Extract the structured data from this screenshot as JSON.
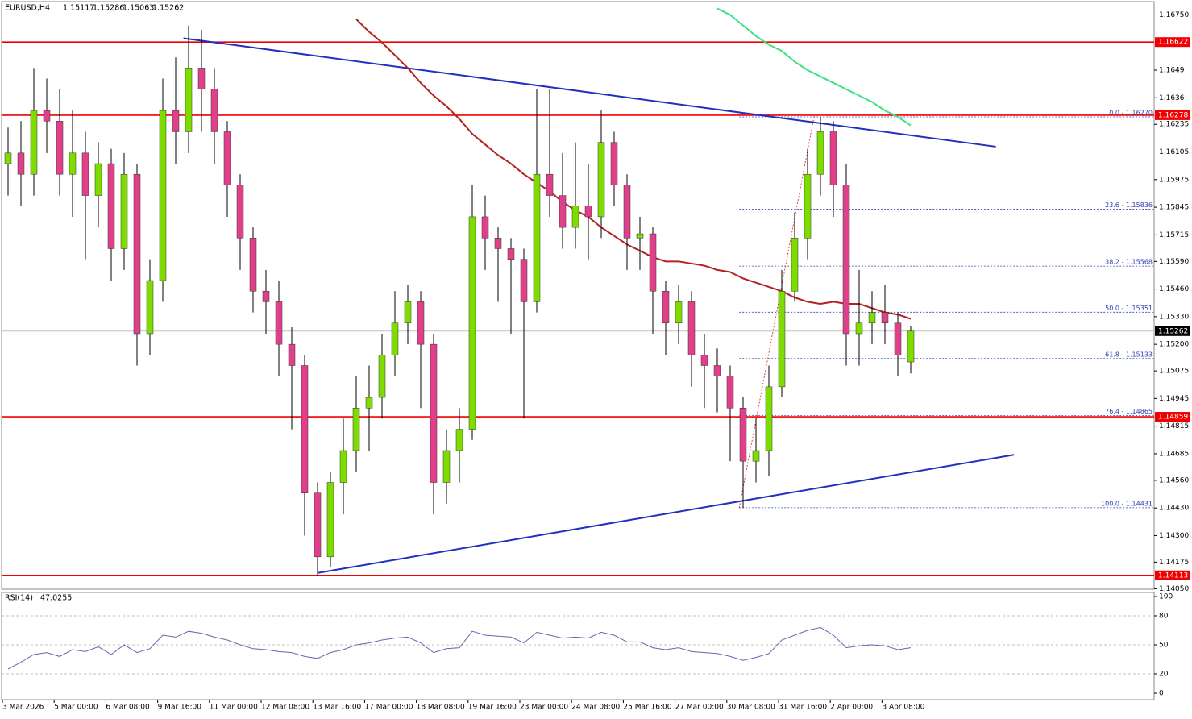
{
  "chart_data": {
    "type": "candlestick",
    "title": "EURUSD,H4",
    "bull_color": "#7fdc00",
    "bear_color": "#e0408a",
    "open": [
      1.1605,
      1.161,
      1.16,
      1.163,
      1.1625,
      1.16,
      1.161,
      1.159,
      1.1605,
      1.1565,
      1.16,
      1.1525,
      1.155,
      1.163,
      1.162,
      1.165,
      1.164,
      1.162,
      1.1595,
      1.157,
      1.1545,
      1.154,
      1.152,
      1.151,
      1.145,
      1.142,
      1.1455,
      1.147,
      1.149,
      1.1495,
      1.1515,
      1.153,
      1.154,
      1.152,
      1.1455,
      1.147,
      1.148,
      1.158,
      1.157,
      1.1565,
      1.156,
      1.154,
      1.16,
      1.159,
      1.1575,
      1.1585,
      1.158,
      1.1615,
      1.1595,
      1.157,
      1.1572,
      1.1545,
      1.153,
      1.154,
      1.1515,
      1.151,
      1.1505,
      1.149,
      1.1465,
      1.147,
      1.15,
      1.1545,
      1.157,
      1.16,
      1.162,
      1.1595,
      1.1525,
      1.153,
      1.1535,
      1.153,
      1.15117
    ],
    "high": [
      1.1622,
      1.1625,
      1.165,
      1.1645,
      1.164,
      1.163,
      1.162,
      1.1615,
      1.1612,
      1.161,
      1.1605,
      1.156,
      1.1645,
      1.1655,
      1.167,
      1.1668,
      1.165,
      1.1625,
      1.16,
      1.1575,
      1.1555,
      1.155,
      1.1528,
      1.1515,
      1.1455,
      1.146,
      1.1485,
      1.1505,
      1.151,
      1.1525,
      1.1545,
      1.1548,
      1.1545,
      1.1525,
      1.148,
      1.149,
      1.1595,
      1.159,
      1.1575,
      1.157,
      1.1565,
      1.164,
      1.164,
      1.161,
      1.1615,
      1.1605,
      1.163,
      1.162,
      1.16,
      1.158,
      1.1575,
      1.155,
      1.1548,
      1.1545,
      1.1525,
      1.1518,
      1.151,
      1.1495,
      1.1485,
      1.151,
      1.1555,
      1.1582,
      1.1612,
      1.1627,
      1.1625,
      1.1605,
      1.1555,
      1.1545,
      1.1548,
      1.1535,
      1.15286
    ],
    "low": [
      1.159,
      1.1585,
      1.159,
      1.161,
      1.159,
      1.158,
      1.156,
      1.1575,
      1.155,
      1.1555,
      1.151,
      1.1515,
      1.154,
      1.1605,
      1.161,
      1.162,
      1.1605,
      1.158,
      1.1555,
      1.1535,
      1.1525,
      1.1505,
      1.148,
      1.143,
      1.1411,
      1.1415,
      1.144,
      1.146,
      1.147,
      1.1485,
      1.1505,
      1.152,
      1.149,
      1.144,
      1.1445,
      1.1455,
      1.1475,
      1.1555,
      1.154,
      1.1525,
      1.1485,
      1.1535,
      1.158,
      1.1565,
      1.1565,
      1.156,
      1.157,
      1.1585,
      1.1555,
      1.1555,
      1.1525,
      1.1515,
      1.152,
      1.15,
      1.149,
      1.1488,
      1.1465,
      1.1443,
      1.1455,
      1.1458,
      1.1495,
      1.154,
      1.156,
      1.159,
      1.158,
      1.151,
      1.151,
      1.152,
      1.152,
      1.1505,
      1.15063
    ],
    "close": [
      1.161,
      1.16,
      1.163,
      1.1625,
      1.16,
      1.161,
      1.159,
      1.1605,
      1.1565,
      1.16,
      1.1525,
      1.155,
      1.163,
      1.162,
      1.165,
      1.164,
      1.162,
      1.1595,
      1.157,
      1.1545,
      1.154,
      1.152,
      1.151,
      1.145,
      1.142,
      1.1455,
      1.147,
      1.149,
      1.1495,
      1.1515,
      1.153,
      1.154,
      1.152,
      1.1455,
      1.147,
      1.148,
      1.158,
      1.157,
      1.1565,
      1.156,
      1.154,
      1.16,
      1.159,
      1.1575,
      1.1585,
      1.158,
      1.1615,
      1.1595,
      1.157,
      1.1572,
      1.1545,
      1.153,
      1.154,
      1.1515,
      1.151,
      1.1505,
      1.149,
      1.1465,
      1.147,
      1.15,
      1.1545,
      1.157,
      1.16,
      1.162,
      1.1595,
      1.1525,
      1.153,
      1.1535,
      1.153,
      1.1515,
      1.15262
    ],
    "moving_averages": [
      {
        "color": "#b22222",
        "values": [
          null,
          null,
          null,
          null,
          null,
          null,
          null,
          null,
          null,
          null,
          null,
          null,
          null,
          null,
          null,
          null,
          null,
          null,
          null,
          null,
          null,
          null,
          null,
          null,
          null,
          null,
          null,
          1.1673,
          1.1667,
          1.1662,
          1.1656,
          1.165,
          1.1643,
          1.1637,
          1.1632,
          1.1626,
          1.1619,
          1.1614,
          1.1609,
          1.1605,
          1.16,
          1.1596,
          1.1592,
          1.1587,
          1.1583,
          1.158,
          1.1575,
          1.1571,
          1.1567,
          1.1564,
          1.1561,
          1.1559,
          1.1559,
          1.1558,
          1.1557,
          1.1555,
          1.1554,
          1.1551,
          1.1549,
          1.1547,
          1.1545,
          1.1542,
          1.154,
          1.1539,
          1.154,
          1.1539,
          1.1539,
          1.1537,
          1.1535,
          1.1534,
          1.1532
        ]
      },
      {
        "color": "#40e080",
        "values": [
          null,
          null,
          null,
          null,
          null,
          null,
          null,
          null,
          null,
          null,
          null,
          null,
          null,
          null,
          null,
          null,
          null,
          null,
          null,
          null,
          null,
          null,
          null,
          null,
          null,
          null,
          null,
          null,
          null,
          null,
          null,
          null,
          null,
          null,
          null,
          null,
          null,
          null,
          null,
          null,
          null,
          null,
          null,
          null,
          null,
          null,
          null,
          null,
          null,
          null,
          null,
          null,
          null,
          null,
          null,
          1.1678,
          1.1675,
          1.167,
          1.1665,
          1.1661,
          1.1658,
          1.1653,
          1.1649,
          1.1646,
          1.1643,
          1.164,
          1.1637,
          1.1634,
          1.163,
          1.1627,
          1.1623
        ]
      }
    ],
    "trendlines": [
      {
        "color": "#2030c0",
        "from": [
          13.6,
          1.1664
        ],
        "to": [
          76.6,
          1.1613
        ]
      },
      {
        "color": "#2030c0",
        "from": [
          24.06,
          1.14125
        ],
        "to": [
          78,
          1.1468
        ]
      },
      {
        "color": "#e04040",
        "dashed": true,
        "from": [
          56.7,
          1.1443
        ],
        "to": [
          62.5,
          1.1627
        ]
      }
    ],
    "levels": [
      {
        "value": 1.16622,
        "color": "#f00000"
      },
      {
        "value": 1.16278,
        "color": "#f00000"
      },
      {
        "value": 1.14859,
        "color": "#f00000"
      },
      {
        "value": 1.14113,
        "color": "#f00000"
      }
    ],
    "fibonacci": [
      {
        "label": "0.0 - 1.16270",
        "value": 1.1627
      },
      {
        "label": "23.6 - 1.15836",
        "value": 1.15836
      },
      {
        "label": "38.2 - 1.15568",
        "value": 1.15568
      },
      {
        "label": "50.0 - 1.15351",
        "value": 1.15351
      },
      {
        "label": "61.8 - 1.15133",
        "value": 1.15133
      },
      {
        "label": "76.4 - 1.14865",
        "value": 1.14865
      },
      {
        "label": "100.0 - 1.14431",
        "value": 1.14431
      }
    ],
    "fib_start": 56.7,
    "x_labels": [
      "3 Mar 2026",
      "5 Mar 00:00",
      "6 Mar 08:00",
      "9 Mar 16:00",
      "11 Mar 00:00",
      "12 Mar 08:00",
      "13 Mar 16:00",
      "17 Mar 00:00",
      "18 Mar 08:00",
      "19 Mar 16:00",
      "23 Mar 00:00",
      "24 Mar 08:00",
      "25 Mar 16:00",
      "27 Mar 00:00",
      "30 Mar 08:00",
      "31 Mar 16:00",
      "2 Apr 00:00",
      "3 Apr 08:00"
    ],
    "ylim": [
      1.1404,
      1.1682
    ],
    "yticks": [
      {
        "value": 1.1675,
        "label": "1.16750"
      },
      1.1649,
      1.1636,
      1.16235,
      1.16105,
      1.15975,
      1.15845,
      1.15715,
      {
        "value": 1.1559,
        "label": "1.15590"
      },
      {
        "value": 1.1546,
        "label": "1.15460"
      },
      {
        "value": 1.1533,
        "label": "1.15330"
      },
      {
        "value": 1.152,
        "label": "1.15200"
      },
      1.15075,
      1.14945,
      1.14815,
      1.14685,
      {
        "value": 1.1456,
        "label": "1.14560"
      },
      {
        "value": 1.1443,
        "label": "1.14430"
      },
      {
        "value": 1.143,
        "label": "1.14300"
      },
      1.14175,
      {
        "value": 1.1405,
        "label": "1.14050"
      }
    ],
    "rsi": {
      "name": "RSI(14)",
      "color": "#7060b0",
      "ylim": [
        0,
        100
      ],
      "yticks": [
        100,
        80,
        50,
        20,
        0
      ],
      "levels": [
        80,
        50,
        20
      ],
      "values": [
        25,
        32,
        40,
        42,
        38,
        45,
        43,
        48,
        40,
        50,
        42,
        46,
        60,
        58,
        64,
        62,
        58,
        55,
        50,
        46,
        45,
        43,
        42,
        38,
        36,
        42,
        45,
        50,
        52,
        55,
        57,
        58,
        52,
        42,
        46,
        47,
        64,
        60,
        59,
        58,
        52,
        63,
        60,
        57,
        58,
        57,
        63,
        60,
        53,
        53,
        47,
        45,
        47,
        43,
        42,
        41,
        38,
        34,
        37,
        41,
        55,
        60,
        65,
        68,
        60,
        47,
        49,
        50,
        49,
        45,
        47.0255
      ]
    }
  }
}
